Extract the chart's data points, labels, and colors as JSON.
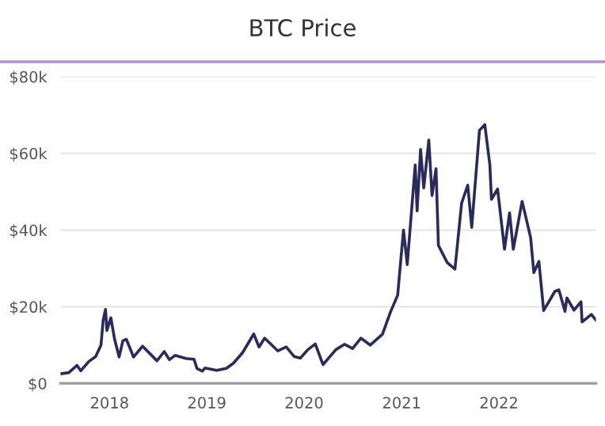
{
  "chart_data": {
    "type": "line",
    "title": "BTC Price",
    "x": [
      "2017-07-01",
      "2017-08-01",
      "2017-09-01",
      "2017-09-15",
      "2017-10-15",
      "2017-11-10",
      "2017-11-30",
      "2017-12-08",
      "2017-12-17",
      "2017-12-22",
      "2018-01-06",
      "2018-01-20",
      "2018-02-06",
      "2018-02-20",
      "2018-03-05",
      "2018-04-01",
      "2018-05-05",
      "2018-06-28",
      "2018-07-25",
      "2018-08-14",
      "2018-09-04",
      "2018-10-15",
      "2018-11-14",
      "2018-11-25",
      "2018-12-15",
      "2018-12-25",
      "2019-02-07",
      "2019-03-15",
      "2019-04-10",
      "2019-05-15",
      "2019-06-26",
      "2019-07-16",
      "2019-08-06",
      "2019-09-24",
      "2019-10-26",
      "2019-11-25",
      "2019-12-18",
      "2020-01-15",
      "2020-02-12",
      "2020-03-12",
      "2020-04-29",
      "2020-06-01",
      "2020-07-01",
      "2020-08-01",
      "2020-09-05",
      "2020-10-21",
      "2020-11-20",
      "2020-12-17",
      "2021-01-08",
      "2021-01-22",
      "2021-02-21",
      "2021-02-28",
      "2021-03-13",
      "2021-03-25",
      "2021-04-13",
      "2021-04-25",
      "2021-05-10",
      "2021-05-19",
      "2021-06-21",
      "2021-07-20",
      "2021-08-14",
      "2021-09-06",
      "2021-09-21",
      "2021-10-20",
      "2021-11-09",
      "2021-11-28",
      "2021-12-04",
      "2021-12-27",
      "2022-01-22",
      "2022-02-10",
      "2022-02-24",
      "2022-03-29",
      "2022-04-30",
      "2022-05-12",
      "2022-05-31",
      "2022-06-18",
      "2022-07-30",
      "2022-08-14",
      "2022-09-06",
      "2022-09-13",
      "2022-10-10",
      "2022-11-05",
      "2022-11-09",
      "2022-12-14",
      "2022-12-31"
    ],
    "series": [
      {
        "color": "#2b2a5e",
        "values": [
          2500,
          2800,
          4700,
          3300,
          5700,
          7000,
          10000,
          16500,
          19300,
          13800,
          17100,
          11500,
          6900,
          11100,
          11500,
          6900,
          9700,
          5900,
          8300,
          6200,
          7300,
          6500,
          6300,
          3900,
          3200,
          4000,
          3400,
          3900,
          5200,
          8000,
          12900,
          9500,
          11800,
          8500,
          9500,
          7000,
          6600,
          8800,
          10300,
          4900,
          8800,
          10200,
          9100,
          11800,
          10000,
          12800,
          18600,
          23000,
          40000,
          31000,
          57000,
          45000,
          61000,
          51000,
          63500,
          49000,
          56000,
          36000,
          31500,
          29800,
          47000,
          51700,
          40700,
          66000,
          67500,
          57000,
          48000,
          50700,
          35000,
          44500,
          35000,
          47500,
          38000,
          28900,
          31800,
          19000,
          24000,
          24400,
          18800,
          22300,
          19100,
          21300,
          16000,
          18000,
          16500
        ]
      }
    ],
    "xlim": [
      "2017-07-01",
      "2022-12-31"
    ],
    "xticks": [
      "2018",
      "2019",
      "2020",
      "2021",
      "2022"
    ],
    "ylim": [
      0,
      80000
    ],
    "yticks": [
      {
        "value": 0,
        "label": "$0"
      },
      {
        "value": 20000,
        "label": "$20k"
      },
      {
        "value": 40000,
        "label": "$40k"
      },
      {
        "value": 60000,
        "label": "$60k"
      },
      {
        "value": 80000,
        "label": "$80k"
      }
    ],
    "grid": "y",
    "line_style": "solid",
    "marker": "none"
  }
}
